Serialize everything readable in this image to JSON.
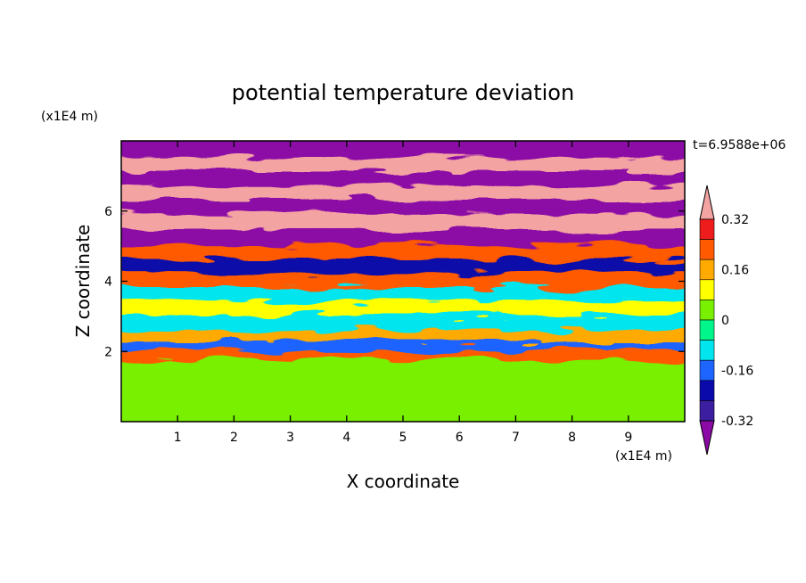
{
  "chart_data": {
    "type": "heatmap",
    "title": "potential temperature deviation",
    "xlabel": "X coordinate",
    "ylabel": "Z coordinate",
    "x_unit": "(x1E4 m)",
    "y_unit": "(x1E4 m)",
    "time_label": "t=6.9588e+06",
    "xlim": [
      0,
      10
    ],
    "ylim": [
      0,
      8
    ],
    "x_ticks": [
      "1",
      "2",
      "3",
      "4",
      "5",
      "6",
      "7",
      "8",
      "9"
    ],
    "x_tick_values": [
      1,
      2,
      3,
      4,
      5,
      6,
      7,
      8,
      9
    ],
    "y_ticks": [
      "2",
      "4",
      "6"
    ],
    "y_tick_values": [
      2,
      4,
      6
    ],
    "colorbar": {
      "labels": [
        "0.32",
        "0.16",
        "0",
        "-0.16",
        "-0.32"
      ],
      "label_values": [
        0.32,
        0.16,
        0,
        -0.16,
        -0.32
      ],
      "levels": [
        -0.4,
        -0.32,
        -0.24,
        -0.16,
        -0.08,
        0,
        0.08,
        0.16,
        0.24,
        0.32,
        0.4
      ],
      "colors": [
        "#8b0aa5",
        "#3c1ea0",
        "#0a0aaa",
        "#1e64ff",
        "#00e5ee",
        "#00f58a",
        "#78f000",
        "#ffff00",
        "#ffaa00",
        "#ff5a00",
        "#ee1c1c",
        "#f4a3a3"
      ],
      "extend": "both"
    },
    "bands": [
      {
        "z": 0.3,
        "value": 0.02
      },
      {
        "z": 1.0,
        "value": 0.03
      },
      {
        "z": 1.7,
        "value": 0.05
      },
      {
        "z": 2.0,
        "value": 0.3
      },
      {
        "z": 2.2,
        "value": -0.2
      },
      {
        "z": 2.5,
        "value": 0.2
      },
      {
        "z": 2.9,
        "value": -0.1
      },
      {
        "z": 3.3,
        "value": 0.12
      },
      {
        "z": 3.7,
        "value": -0.15
      },
      {
        "z": 4.1,
        "value": 0.25
      },
      {
        "z": 4.5,
        "value": -0.3
      },
      {
        "z": 4.9,
        "value": 0.3
      },
      {
        "z": 5.3,
        "value": -0.42
      },
      {
        "z": 5.8,
        "value": 0.45
      },
      {
        "z": 6.2,
        "value": -0.45
      },
      {
        "z": 6.6,
        "value": 0.42
      },
      {
        "z": 7.0,
        "value": -0.42
      },
      {
        "z": 7.4,
        "value": 0.45
      },
      {
        "z": 7.8,
        "value": -0.45
      }
    ]
  }
}
